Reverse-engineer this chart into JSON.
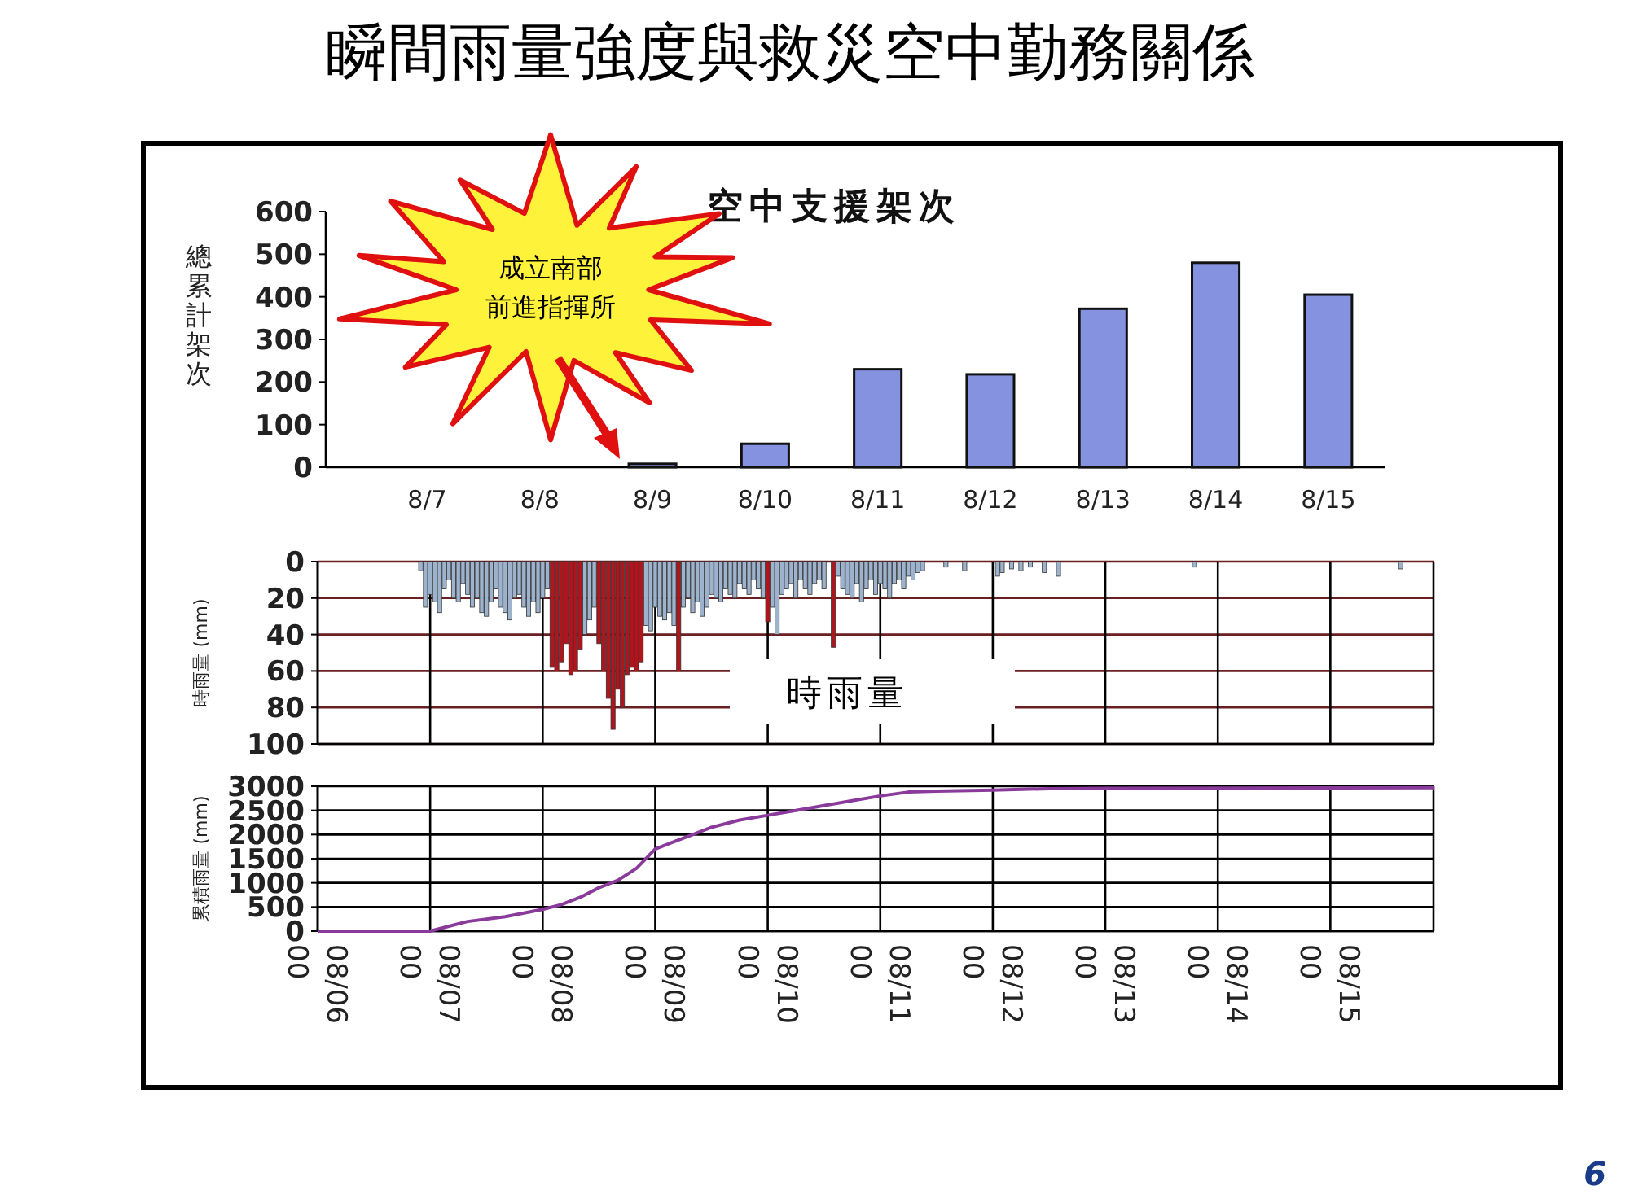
{
  "chart_data": [
    {
      "type": "bar",
      "title": "瞬間雨量強度與救災空中勤務關係",
      "subtitle": "空中支援架次",
      "ylabel": "總累計架次",
      "categories": [
        "8/7",
        "8/8",
        "8/9",
        "8/10",
        "8/11",
        "8/12",
        "8/13",
        "8/14",
        "8/15"
      ],
      "values": [
        0,
        0,
        8,
        55,
        230,
        218,
        372,
        480,
        405
      ],
      "color": "#8592e0",
      "ylim": [
        0,
        600
      ],
      "yticks": [
        0,
        100,
        200,
        300,
        400,
        500,
        600
      ],
      "annotations": [
        "成立南部前進指揮所"
      ]
    },
    {
      "type": "bar",
      "ylabel": "時雨量 (mm)",
      "xlim": [
        "--08-06T00:00",
        "--08-15T22:00"
      ],
      "xticks": [
        {
          "value": "--08-06T00:00",
          "label": null
        },
        {
          "value": "--08-07T00:00",
          "label": null
        },
        {
          "value": "--08-08T00:00",
          "label": null
        },
        {
          "value": "--08-09T00:00",
          "label": null
        },
        {
          "value": "--08-10T00:00",
          "label": null
        },
        {
          "value": "--08-11T00:00",
          "label": null
        },
        {
          "value": "--08-12T00:00",
          "label": null
        },
        {
          "value": "--08-13T00:00",
          "label": null
        },
        {
          "value": "--08-14T00:00",
          "label": null
        },
        {
          "value": "--08-15T00:00",
          "label": null
        }
      ],
      "ylim": [
        100,
        0
      ],
      "yticks": [
        0,
        20,
        40,
        60,
        80,
        100
      ],
      "grid": true,
      "tick_labels": "y",
      "annotations": [
        "時雨量"
      ],
      "series": [
        {
          "color": "#9db2cc",
          "x": [
            "--08-06T22:00",
            "--08-06T23:00",
            "--08-07T00:00",
            "--08-07T01:00",
            "--08-07T02:00",
            "--08-07T03:00",
            "--08-07T04:00",
            "--08-07T05:00",
            "--08-07T06:00",
            "--08-07T07:00",
            "--08-07T08:00",
            "--08-07T09:00",
            "--08-07T10:00",
            "--08-07T11:00",
            "--08-07T12:00",
            "--08-07T13:00",
            "--08-07T14:00",
            "--08-07T15:00",
            "--08-07T16:00",
            "--08-07T17:00",
            "--08-07T18:00",
            "--08-07T19:00",
            "--08-07T20:00",
            "--08-07T21:00",
            "--08-07T22:00",
            "--08-07T23:00",
            "--08-08T00:00",
            "--08-08T01:00",
            "--08-08T09:00",
            "--08-08T10:00",
            "--08-08T11:00",
            "--08-08T22:00",
            "--08-08T23:00",
            "--08-09T00:00",
            "--08-09T01:00",
            "--08-09T02:00",
            "--08-09T03:00",
            "--08-09T04:00",
            "--08-09T06:00",
            "--08-09T07:00",
            "--08-09T08:00",
            "--08-09T09:00",
            "--08-09T10:00",
            "--08-09T11:00",
            "--08-09T12:00",
            "--08-09T13:00",
            "--08-09T14:00",
            "--08-09T15:00",
            "--08-09T16:00",
            "--08-09T17:00",
            "--08-09T18:00",
            "--08-09T19:00",
            "--08-09T20:00",
            "--08-09T21:00",
            "--08-09T22:00",
            "--08-09T23:00",
            "--08-10T01:00",
            "--08-10T02:00",
            "--08-10T03:00",
            "--08-10T04:00",
            "--08-10T05:00",
            "--08-10T06:00",
            "--08-10T07:00",
            "--08-10T08:00",
            "--08-10T09:00",
            "--08-10T10:00",
            "--08-10T11:00",
            "--08-10T12:00",
            "--08-10T15:00",
            "--08-10T16:00",
            "--08-10T17:00",
            "--08-10T18:00",
            "--08-10T19:00",
            "--08-10T20:00",
            "--08-10T21:00",
            "--08-10T22:00",
            "--08-10T23:00",
            "--08-11T00:00",
            "--08-11T01:00",
            "--08-11T02:00",
            "--08-11T03:00",
            "--08-11T04:00",
            "--08-11T05:00",
            "--08-11T06:00",
            "--08-11T07:00",
            "--08-11T08:00",
            "--08-11T09:00",
            "--08-11T14:00",
            "--08-11T18:00",
            "--08-12T01:00",
            "--08-12T02:00",
            "--08-12T04:00",
            "--08-12T06:00",
            "--08-12T08:00",
            "--08-12T11:00",
            "--08-12T14:00",
            "--08-13T19:00",
            "--08-15T15:00"
          ],
          "values": [
            5,
            25,
            18,
            22,
            28,
            15,
            10,
            20,
            22,
            12,
            18,
            25,
            20,
            28,
            30,
            22,
            15,
            25,
            28,
            32,
            20,
            18,
            25,
            30,
            22,
            28,
            20,
            15,
            40,
            32,
            25,
            35,
            38,
            25,
            30,
            32,
            28,
            35,
            25,
            20,
            28,
            22,
            30,
            25,
            18,
            20,
            22,
            15,
            18,
            20,
            12,
            15,
            18,
            10,
            15,
            20,
            25,
            40,
            18,
            15,
            12,
            20,
            10,
            15,
            18,
            12,
            10,
            15,
            8,
            15,
            18,
            20,
            12,
            22,
            15,
            10,
            18,
            12,
            15,
            20,
            12,
            10,
            15,
            8,
            10,
            6,
            5,
            3,
            5,
            8,
            6,
            4,
            5,
            3,
            6,
            8,
            3,
            4
          ]
        },
        {
          "color": "#b0141c",
          "x": [
            "--08-08T02:00",
            "--08-08T03:00",
            "--08-08T04:00",
            "--08-08T05:00",
            "--08-08T06:00",
            "--08-08T07:00",
            "--08-08T08:00",
            "--08-08T12:00",
            "--08-08T13:00",
            "--08-08T14:00",
            "--08-08T15:00",
            "--08-08T16:00",
            "--08-08T17:00",
            "--08-08T18:00",
            "--08-08T19:00",
            "--08-08T20:00",
            "--08-08T21:00",
            "--08-09T05:00",
            "--08-10T00:00",
            "--08-10T14:00"
          ],
          "values": [
            58,
            60,
            55,
            45,
            62,
            60,
            48,
            45,
            60,
            75,
            92,
            70,
            80,
            62,
            58,
            60,
            55,
            60,
            33,
            47
          ]
        }
      ]
    },
    {
      "type": "line",
      "ylabel": "累積雨量 (mm)",
      "color": "#8a3a9a",
      "xlim": [
        "--08-06T00:00",
        "--08-15T22:00"
      ],
      "xticks": [
        {
          "value": "--08-06T00:00",
          "label": "08/06 00"
        },
        {
          "value": "--08-07T00:00",
          "label": "08/07 00"
        },
        {
          "value": "--08-08T00:00",
          "label": "08/08 00"
        },
        {
          "value": "--08-09T00:00",
          "label": "08/09 00"
        },
        {
          "value": "--08-10T00:00",
          "label": "08/10 00"
        },
        {
          "value": "--08-11T00:00",
          "label": "08/11 00"
        },
        {
          "value": "--08-12T00:00",
          "label": "08/12 00"
        },
        {
          "value": "--08-13T00:00",
          "label": "08/13 00"
        },
        {
          "value": "--08-14T00:00",
          "label": "08/14 00"
        },
        {
          "value": "--08-15T00:00",
          "label": "08/15 00"
        }
      ],
      "ylim": [
        0,
        3000
      ],
      "yticks": [
        0,
        500,
        1000,
        1500,
        2000,
        2500,
        3000
      ],
      "grid": true,
      "x": [
        "--08-06T00:00",
        "--08-07T00:00",
        "--08-07T04:00",
        "--08-07T08:00",
        "--08-07T16:00",
        "--08-08T00:00",
        "--08-08T04:00",
        "--08-08T08:00",
        "--08-08T12:00",
        "--08-08T16:00",
        "--08-08T20:00",
        "--08-09T00:00",
        "--08-09T04:00",
        "--08-09T08:00",
        "--08-09T12:00",
        "--08-09T18:00",
        "--08-10T00:00",
        "--08-10T06:00",
        "--08-10T12:00",
        "--08-10T18:00",
        "--08-11T00:00",
        "--08-11T06:00",
        "--08-11T12:00",
        "--08-12T00:00",
        "--08-12T12:00",
        "--08-13T00:00",
        "--08-15T22:00"
      ],
      "values": [
        0,
        0,
        100,
        200,
        300,
        450,
        550,
        700,
        900,
        1050,
        1300,
        1700,
        1850,
        2000,
        2150,
        2300,
        2400,
        2500,
        2600,
        2700,
        2800,
        2880,
        2900,
        2920,
        2950,
        2960,
        2970
      ],
      "annotations": [
        "6"
      ]
    }
  ]
}
